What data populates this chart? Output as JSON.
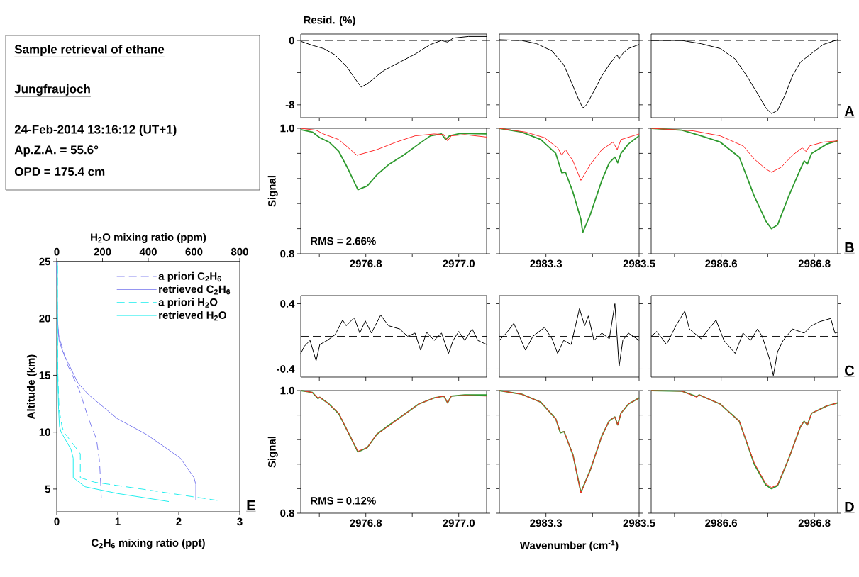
{
  "chart_data": [
    {
      "type": "other",
      "title": "Sample retrieval of ethane",
      "subtitle": "Jungfraujoch",
      "annotations": [
        "24-Feb-2014  13:16:12 (UT+1)",
        "Ap.Z.A. = 55.6°",
        "OPD = 175.4 cm"
      ]
    },
    {
      "type": "line",
      "xlabel": "C$_{2}$H$_{6}$ mixing ratio (ppt)",
      "x2label": "H$_{2}$O mixing ratio (ppm)",
      "ylabel": "Altitude (km)",
      "annotations": [
        "E"
      ],
      "xlim": [
        0,
        3
      ],
      "xticks": [
        0,
        1,
        2,
        3
      ],
      "x2lim": [
        0,
        800
      ],
      "x2ticks": [
        0,
        200,
        400,
        600,
        800
      ],
      "ylim": [
        3,
        25
      ],
      "yticks": [
        5,
        10,
        15,
        20,
        25
      ],
      "legend": "top right",
      "series": [
        {
          "name": "a priori C$_{2}$H$_{6}$",
          "color": "#8080ee",
          "line_style": "dashed",
          "x": [
            0,
            0.01,
            0.03,
            0.17,
            0.37,
            0.52,
            0.65,
            0.7,
            0.72,
            0.73
          ],
          "values": [
            25,
            20,
            18.5,
            16,
            13.7,
            11.2,
            9.4,
            7.5,
            5.5,
            4.2
          ]
        },
        {
          "name": "retrieved C$_{2}$H$_{6}$",
          "color": "#8080ee",
          "line_style": "solid",
          "x": [
            0,
            0.01,
            0.04,
            0.12,
            0.35,
            0.52,
            0.99,
            1.47,
            1.82,
            2.03,
            2.25,
            2.28,
            2.28
          ],
          "values": [
            25,
            20,
            18,
            16.8,
            14.3,
            13.3,
            11.2,
            9.8,
            8.5,
            7.7,
            6.0,
            5.4,
            4.0
          ]
        },
        {
          "name": "a priori H$_{2}$O",
          "color": "#22eeee",
          "line_style": "dashed",
          "axis": "x2",
          "x": [
            3,
            3,
            5,
            10,
            23,
            31,
            72,
            103,
            103,
            165,
            372,
            702
          ],
          "values": [
            25,
            20,
            15,
            12,
            10.5,
            10.0,
            8.95,
            8.1,
            6.0,
            5.6,
            5.0,
            4.0
          ]
        },
        {
          "name": "retrieved H$_{2}$O",
          "color": "#22eeee",
          "line_style": "solid",
          "axis": "x2",
          "x": [
            3,
            3,
            4,
            8,
            12,
            19,
            62,
            72,
            72,
            124,
            268,
            490
          ],
          "values": [
            25,
            20,
            15,
            12,
            10.5,
            10.0,
            8.5,
            7.7,
            6.0,
            5.2,
            4.6,
            3.9
          ]
        }
      ]
    },
    {
      "type": "line",
      "ylabel": "Resid. (%)",
      "tick_labels": "y",
      "xlim": [
        2976.66,
        2977.06
      ],
      "xticks": [
        {
          "value": 2976.7,
          "label": null
        },
        {
          "value": 2976.8,
          "label": null
        },
        {
          "value": 2976.9,
          "label": null
        },
        {
          "value": 2977.0,
          "label": null
        }
      ],
      "ylim": [
        -9.6,
        0.8
      ],
      "yticks": [
        0,
        {
          "value": -4,
          "label": null
        },
        -8
      ],
      "ref_lines": [
        {
          "axis": "y",
          "value": 0,
          "color": "#000000",
          "line_style": "dashed"
        }
      ],
      "series": [
        {
          "color": "#000000",
          "x": [
            2976.66,
            2976.685,
            2976.709,
            2976.734,
            2976.758,
            2976.775,
            2976.79,
            2976.803,
            2976.824,
            2976.84,
            2976.873,
            2976.906,
            2976.939,
            2976.963,
            2976.976,
            2976.988,
            2977.021,
            2977.06
          ],
          "values": [
            -0.1,
            -0.6,
            -1.0,
            -1.8,
            -3.2,
            -4.6,
            -5.8,
            -5.4,
            -4.4,
            -3.7,
            -2.7,
            -1.7,
            -0.5,
            0.0,
            -0.2,
            0.3,
            0.5,
            0.5
          ]
        }
      ]
    },
    {
      "type": "line",
      "tick_labels": false,
      "xlim": [
        2983.2,
        2983.5
      ],
      "xticks": [
        {
          "value": 2983.3,
          "label": null
        },
        {
          "value": 2983.4,
          "label": null
        },
        {
          "value": 2983.5,
          "label": null
        }
      ],
      "ylim": [
        -9.6,
        0.8
      ],
      "yticks": [
        {
          "value": 0,
          "label": null
        },
        {
          "value": -4,
          "label": null
        },
        {
          "value": -8,
          "label": null
        }
      ],
      "ref_lines": [
        {
          "axis": "y",
          "value": 0,
          "color": "#000000",
          "line_style": "dashed"
        }
      ],
      "series": [
        {
          "color": "#000000",
          "x": [
            2983.2,
            2983.248,
            2983.28,
            2983.313,
            2983.338,
            2983.354,
            2983.37,
            2983.379,
            2983.387,
            2983.403,
            2983.42,
            2983.436,
            2983.448,
            2983.453,
            2983.457,
            2983.465,
            2983.477,
            2983.5
          ],
          "values": [
            0.1,
            0,
            -0.4,
            -1.3,
            -3.0,
            -5.1,
            -7.3,
            -8.4,
            -8.0,
            -6.3,
            -4.4,
            -3.0,
            -2.1,
            -1.8,
            -2.3,
            -1.6,
            -1.0,
            -0.5
          ]
        }
      ]
    },
    {
      "type": "line",
      "tick_labels": false,
      "annotations": [
        "A"
      ],
      "xlim": [
        2986.45,
        2986.85
      ],
      "xticks": [
        {
          "value": 2986.5,
          "label": null
        },
        {
          "value": 2986.6,
          "label": null
        },
        {
          "value": 2986.7,
          "label": null
        },
        {
          "value": 2986.8,
          "label": null
        }
      ],
      "ylim": [
        -9.6,
        0.8
      ],
      "yticks": [
        {
          "value": 0,
          "label": null
        },
        {
          "value": -4,
          "label": null
        },
        {
          "value": -8,
          "label": null
        }
      ],
      "ref_lines": [
        {
          "axis": "y",
          "value": 0,
          "color": "#000000",
          "line_style": "dashed"
        }
      ],
      "series": [
        {
          "color": "#000000",
          "x": [
            2986.45,
            2986.516,
            2986.557,
            2986.598,
            2986.63,
            2986.655,
            2986.68,
            2986.696,
            2986.708,
            2986.721,
            2986.737,
            2986.753,
            2986.77,
            2986.794,
            2986.819,
            2986.85
          ],
          "values": [
            0,
            0,
            -0.4,
            -1.0,
            -2.3,
            -4.4,
            -6.8,
            -8.4,
            -9.1,
            -8.7,
            -6.8,
            -4.4,
            -2.7,
            -1.6,
            -0.5,
            0.1
          ]
        }
      ]
    },
    {
      "type": "line",
      "ylabel": "Signal",
      "annotations": [
        "RMS = 2.66%"
      ],
      "xlim": [
        2976.66,
        2977.06
      ],
      "xticks": [
        {
          "value": 2976.7,
          "label": null
        },
        2976.8,
        {
          "value": 2976.9,
          "label": null
        },
        {
          "value": 2977.0,
          "label": "2977.0"
        }
      ],
      "ylim": [
        0.8,
        1.0
      ],
      "yticks": [
        0.8,
        {
          "value": 0.84,
          "label": null
        },
        {
          "value": 0.88,
          "label": null
        },
        {
          "value": 0.92,
          "label": null
        },
        {
          "value": 0.96,
          "label": null
        },
        {
          "value": 1.0,
          "label": "1.0"
        }
      ],
      "series": [
        {
          "color": "#2e9a2e",
          "x": [
            2976.66,
            2976.685,
            2976.701,
            2976.721,
            2976.742,
            2976.762,
            2976.783,
            2976.803,
            2976.824,
            2976.849,
            2976.881,
            2976.914,
            2976.939,
            2976.963,
            2976.972,
            2976.98,
            2977.004,
            2977.06
          ],
          "values": [
            0.998,
            0.994,
            0.985,
            0.978,
            0.963,
            0.935,
            0.902,
            0.908,
            0.926,
            0.942,
            0.957,
            0.975,
            0.988,
            0.991,
            0.982,
            0.988,
            0.992,
            0.991
          ]
        },
        {
          "color": "#ff2a2a",
          "x": [
            2976.66,
            2976.693,
            2976.709,
            2976.742,
            2976.781,
            2976.824,
            2976.865,
            2976.906,
            2976.947,
            2976.968,
            2976.976,
            2976.984,
            2977.013,
            2977.06
          ],
          "values": [
            1.0,
            0.997,
            0.991,
            0.982,
            0.957,
            0.966,
            0.978,
            0.988,
            0.991,
            0.99,
            0.98,
            0.988,
            0.99,
            0.986
          ]
        }
      ]
    },
    {
      "type": "line",
      "tick_labels": "x",
      "xlim": [
        2983.2,
        2983.5
      ],
      "xticks": [
        2983.3,
        {
          "value": 2983.4,
          "label": null
        },
        2983.5
      ],
      "ylim": [
        0.8,
        1.0
      ],
      "yticks": [
        {
          "value": 0.8,
          "label": null
        },
        {
          "value": 0.84,
          "label": null
        },
        {
          "value": 0.88,
          "label": null
        },
        {
          "value": 0.92,
          "label": null
        },
        {
          "value": 0.96,
          "label": null
        },
        {
          "value": 1.0,
          "label": null
        }
      ],
      "series": [
        {
          "color": "#2e9a2e",
          "x": [
            2983.2,
            2983.248,
            2983.289,
            2983.321,
            2983.334,
            2983.342,
            2983.358,
            2983.375,
            2983.379,
            2983.395,
            2983.42,
            2983.436,
            2983.448,
            2983.454,
            2983.461,
            2983.477,
            2983.5
          ],
          "values": [
            1.0,
            0.994,
            0.982,
            0.96,
            0.929,
            0.93,
            0.898,
            0.855,
            0.834,
            0.862,
            0.917,
            0.945,
            0.954,
            0.945,
            0.96,
            0.975,
            0.988
          ]
        },
        {
          "color": "#ff2a2a",
          "x": [
            2983.2,
            2983.256,
            2983.297,
            2983.325,
            2983.334,
            2983.342,
            2983.358,
            2983.375,
            2983.395,
            2983.42,
            2983.444,
            2983.453,
            2983.461,
            2983.5
          ],
          "values": [
            1.0,
            0.994,
            0.985,
            0.969,
            0.957,
            0.966,
            0.948,
            0.917,
            0.942,
            0.966,
            0.978,
            0.966,
            0.982,
            0.991
          ]
        }
      ]
    },
    {
      "type": "line",
      "tick_labels": "x",
      "annotations": [
        "B"
      ],
      "xlim": [
        2986.45,
        2986.85
      ],
      "xticks": [
        {
          "value": 2986.5,
          "label": null
        },
        2986.6,
        {
          "value": 2986.7,
          "label": null
        },
        2986.8
      ],
      "ylim": [
        0.8,
        1.0
      ],
      "yticks": [
        {
          "value": 0.8,
          "label": null
        },
        {
          "value": 0.84,
          "label": null
        },
        {
          "value": 0.88,
          "label": null
        },
        {
          "value": 0.92,
          "label": null
        },
        {
          "value": 0.96,
          "label": null
        },
        {
          "value": 1.0,
          "label": null
        }
      ],
      "series": [
        {
          "color": "#2e9a2e",
          "x": [
            2986.45,
            2986.516,
            2986.557,
            2986.598,
            2986.639,
            2986.671,
            2986.696,
            2986.708,
            2986.721,
            2986.745,
            2986.77,
            2986.778,
            2986.785,
            2986.794,
            2986.827,
            2986.85
          ],
          "values": [
            1.0,
            0.997,
            0.988,
            0.978,
            0.954,
            0.892,
            0.852,
            0.84,
            0.846,
            0.892,
            0.935,
            0.948,
            0.943,
            0.96,
            0.975,
            0.98
          ]
        },
        {
          "color": "#ff2a2a",
          "x": [
            2986.45,
            2986.54,
            2986.598,
            2986.647,
            2986.671,
            2986.696,
            2986.708,
            2986.729,
            2986.753,
            2986.774,
            2986.782,
            2986.79,
            2986.819,
            2986.85
          ],
          "values": [
            1.0,
            0.996,
            0.988,
            0.972,
            0.951,
            0.935,
            0.93,
            0.938,
            0.957,
            0.969,
            0.963,
            0.972,
            0.978,
            0.98
          ]
        }
      ]
    },
    {
      "type": "line",
      "tick_labels": "y",
      "xlim": [
        2976.66,
        2977.06
      ],
      "xticks": [
        {
          "value": 2976.7,
          "label": null
        },
        {
          "value": 2976.8,
          "label": null
        },
        {
          "value": 2976.9,
          "label": null
        },
        {
          "value": 2977.0,
          "label": null
        }
      ],
      "ylim": [
        -0.5,
        0.5
      ],
      "yticks": [
        0.4,
        -0.4
      ],
      "ref_lines": [
        {
          "axis": "y",
          "value": 0,
          "color": "#000000",
          "line_style": "dashed"
        }
      ],
      "series": [
        {
          "color": "#000000",
          "x": [
            2976.66,
            2976.668,
            2976.68,
            2976.693,
            2976.701,
            2976.717,
            2976.734,
            2976.75,
            2976.758,
            2976.775,
            2976.787,
            2976.799,
            2976.812,
            2976.832,
            2976.849,
            2976.873,
            2976.89,
            2976.906,
            2976.918,
            2976.931,
            2976.947,
            2976.963,
            2976.978,
            2976.988,
            2977.0,
            2977.013,
            2977.029,
            2977.041,
            2977.06
          ],
          "values": [
            -0.21,
            -0.12,
            -0.05,
            -0.3,
            -0.1,
            -0.05,
            0.02,
            0.2,
            0.13,
            0.23,
            0.04,
            0.19,
            0.04,
            0.26,
            0.13,
            0.09,
            0.0,
            0.04,
            -0.17,
            0.05,
            -0.05,
            0.04,
            -0.21,
            -0.05,
            0.06,
            -0.05,
            0.09,
            -0.05,
            -0.1
          ]
        }
      ]
    },
    {
      "type": "line",
      "tick_labels": false,
      "xlim": [
        2983.2,
        2983.5
      ],
      "xticks": [
        {
          "value": 2983.3,
          "label": null
        },
        {
          "value": 2983.4,
          "label": null
        },
        {
          "value": 2983.5,
          "label": null
        }
      ],
      "ylim": [
        -0.5,
        0.5
      ],
      "yticks": [
        {
          "value": 0.4,
          "label": null
        },
        {
          "value": -0.4,
          "label": null
        }
      ],
      "ref_lines": [
        {
          "axis": "y",
          "value": 0,
          "color": "#000000",
          "line_style": "dashed"
        }
      ],
      "series": [
        {
          "color": "#000000",
          "x": [
            2983.2,
            2983.215,
            2983.231,
            2983.256,
            2983.272,
            2983.297,
            2983.313,
            2983.325,
            2983.338,
            2983.354,
            2983.372,
            2983.383,
            2983.391,
            2983.403,
            2983.42,
            2983.436,
            2983.448,
            2983.457,
            2983.465,
            2983.477,
            2983.5
          ],
          "values": [
            -0.05,
            0.04,
            0.16,
            -0.17,
            0.0,
            0.11,
            -0.03,
            -0.21,
            -0.05,
            -0.1,
            0.34,
            0.13,
            0.25,
            -0.05,
            0.04,
            -0.03,
            0.4,
            -0.37,
            -0.05,
            0.04,
            -0.05
          ]
        }
      ]
    },
    {
      "type": "line",
      "tick_labels": false,
      "annotations": [
        "C"
      ],
      "xlim": [
        2986.45,
        2986.85
      ],
      "xticks": [
        {
          "value": 2986.5,
          "label": null
        },
        {
          "value": 2986.6,
          "label": null
        },
        {
          "value": 2986.7,
          "label": null
        },
        {
          "value": 2986.8,
          "label": null
        }
      ],
      "ylim": [
        -0.5,
        0.5
      ],
      "yticks": [
        {
          "value": 0.4,
          "label": null
        },
        {
          "value": -0.4,
          "label": null
        }
      ],
      "ref_lines": [
        {
          "axis": "y",
          "value": 0,
          "color": "#000000",
          "line_style": "dashed"
        }
      ],
      "series": [
        {
          "color": "#000000",
          "x": [
            2986.45,
            2986.462,
            2986.483,
            2986.503,
            2986.522,
            2986.532,
            2986.557,
            2986.589,
            2986.606,
            2986.63,
            2986.647,
            2986.663,
            2986.678,
            2986.688,
            2986.704,
            2986.712,
            2986.721,
            2986.733,
            2986.753,
            2986.778,
            2986.794,
            2986.811,
            2986.835,
            2986.844,
            2986.85
          ],
          "values": [
            0.0,
            0.06,
            -0.1,
            0.13,
            0.31,
            0.09,
            -0.03,
            0.2,
            -0.05,
            -0.21,
            0.04,
            -0.05,
            0.09,
            0.0,
            -0.28,
            -0.48,
            -0.19,
            -0.05,
            0.09,
            0.04,
            0.13,
            0.18,
            0.22,
            0.04,
            0.05
          ]
        }
      ]
    },
    {
      "type": "line",
      "ylabel": "Signal",
      "annotations": [
        "RMS = 0.12%"
      ],
      "xlim": [
        2976.66,
        2977.06
      ],
      "xticks": [
        {
          "value": 2976.7,
          "label": null
        },
        2976.8,
        {
          "value": 2976.9,
          "label": null
        },
        {
          "value": 2977.0,
          "label": "2977.0"
        }
      ],
      "ylim": [
        0.8,
        1.0
      ],
      "yticks": [
        0.8,
        {
          "value": 0.84,
          "label": null
        },
        {
          "value": 0.88,
          "label": null
        },
        {
          "value": 0.92,
          "label": null
        },
        {
          "value": 0.96,
          "label": null
        },
        {
          "value": 1.0,
          "label": "1.0"
        }
      ],
      "x": [
        2976.66,
        2976.685,
        2976.697,
        2976.701,
        2976.721,
        2976.742,
        2976.762,
        2976.783,
        2976.803,
        2976.824,
        2976.849,
        2976.881,
        2976.914,
        2976.947,
        2976.968,
        2976.976,
        2976.984,
        2977.013,
        2977.06
      ],
      "series": [
        {
          "color": "#2e9a2e",
          "values": [
            1.0,
            0.997,
            0.987,
            0.989,
            0.978,
            0.962,
            0.932,
            0.9,
            0.907,
            0.929,
            0.943,
            0.96,
            0.978,
            0.988,
            0.991,
            0.98,
            0.991,
            0.993,
            0.993
          ]
        },
        {
          "color": "#ff2a2a",
          "values": [
            1.0,
            0.997,
            0.988,
            0.989,
            0.978,
            0.963,
            0.932,
            0.901,
            0.907,
            0.929,
            0.942,
            0.96,
            0.978,
            0.988,
            0.991,
            0.98,
            0.991,
            0.992,
            0.991
          ]
        }
      ]
    },
    {
      "type": "line",
      "tick_labels": "x",
      "xlabel": "Wavenumber (cm$^{-1}$)",
      "xlim": [
        2983.2,
        2983.5
      ],
      "xticks": [
        2983.3,
        {
          "value": 2983.4,
          "label": null
        },
        2983.5
      ],
      "ylim": [
        0.8,
        1.0
      ],
      "yticks": [
        {
          "value": 0.8,
          "label": null
        },
        {
          "value": 0.84,
          "label": null
        },
        {
          "value": 0.88,
          "label": null
        },
        {
          "value": 0.92,
          "label": null
        },
        {
          "value": 0.96,
          "label": null
        },
        {
          "value": 1.0,
          "label": null
        }
      ],
      "x": [
        2983.2,
        2983.248,
        2983.289,
        2983.321,
        2983.331,
        2983.339,
        2983.358,
        2983.375,
        2983.395,
        2983.42,
        2983.436,
        2983.448,
        2983.454,
        2983.461,
        2983.477,
        2983.5
      ],
      "series": [
        {
          "color": "#2e9a2e",
          "values": [
            1.0,
            0.994,
            0.981,
            0.954,
            0.931,
            0.933,
            0.895,
            0.834,
            0.87,
            0.926,
            0.951,
            0.957,
            0.944,
            0.963,
            0.978,
            0.988
          ]
        },
        {
          "color": "#ff2a2a",
          "values": [
            1.0,
            0.994,
            0.981,
            0.954,
            0.932,
            0.933,
            0.895,
            0.833,
            0.87,
            0.926,
            0.951,
            0.957,
            0.944,
            0.963,
            0.978,
            0.988
          ]
        }
      ]
    },
    {
      "type": "line",
      "tick_labels": "x",
      "annotations": [
        "D"
      ],
      "xlim": [
        2986.45,
        2986.85
      ],
      "xticks": [
        {
          "value": 2986.5,
          "label": null
        },
        2986.6,
        {
          "value": 2986.7,
          "label": null
        },
        2986.8
      ],
      "ylim": [
        0.8,
        1.0
      ],
      "yticks": [
        {
          "value": 0.8,
          "label": null
        },
        {
          "value": 0.84,
          "label": null
        },
        {
          "value": 0.88,
          "label": null
        },
        {
          "value": 0.92,
          "label": null
        },
        {
          "value": 0.96,
          "label": null
        },
        {
          "value": 1.0,
          "label": null
        }
      ],
      "x": [
        2986.45,
        2986.516,
        2986.548,
        2986.553,
        2986.598,
        2986.639,
        2986.671,
        2986.696,
        2986.708,
        2986.721,
        2986.745,
        2986.77,
        2986.778,
        2986.785,
        2986.794,
        2986.827,
        2986.85
      ],
      "series": [
        {
          "color": "#2e9a2e",
          "values": [
            1.0,
            0.999,
            0.99,
            0.993,
            0.978,
            0.95,
            0.88,
            0.846,
            0.84,
            0.845,
            0.889,
            0.941,
            0.95,
            0.944,
            0.963,
            0.975,
            0.98
          ]
        },
        {
          "color": "#ff2a2a",
          "values": [
            1.0,
            0.999,
            0.989,
            0.993,
            0.978,
            0.95,
            0.882,
            0.848,
            0.842,
            0.846,
            0.889,
            0.941,
            0.95,
            0.944,
            0.963,
            0.975,
            0.98
          ]
        }
      ]
    }
  ]
}
